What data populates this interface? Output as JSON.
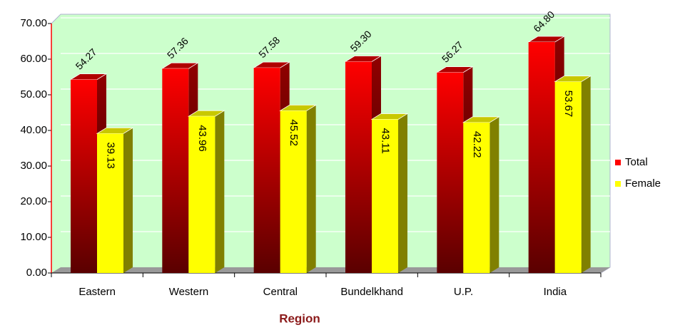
{
  "chart_data": {
    "type": "bar3d",
    "x_label": "Region",
    "categories": [
      "Eastern",
      "Western",
      "Central",
      "Bundelkhand",
      "U.P.",
      "India"
    ],
    "series": [
      {
        "name": "Total",
        "color": "#ff0000",
        "values": [
          54.27,
          57.36,
          57.58,
          59.3,
          56.27,
          64.8
        ],
        "value_labels": [
          "54.27",
          "57.36",
          "57.58",
          "59.30",
          "56.27",
          "64.80"
        ]
      },
      {
        "name": "Female",
        "color": "#ffff00",
        "values": [
          39.13,
          43.96,
          45.52,
          43.11,
          42.22,
          53.67
        ],
        "value_labels": [
          "39.13",
          "43.96",
          "45.52",
          "43.11",
          "42.22",
          "53.67"
        ]
      }
    ],
    "ylim": [
      0,
      70
    ],
    "yticks": [
      {
        "value": 0,
        "label": "0.00"
      },
      {
        "value": 10,
        "label": "10.00"
      },
      {
        "value": 20,
        "label": "20.00"
      },
      {
        "value": 30,
        "label": "30.00"
      },
      {
        "value": 40,
        "label": "40.00"
      },
      {
        "value": 50,
        "label": "50.00"
      },
      {
        "value": 60,
        "label": "60.00"
      },
      {
        "value": 70,
        "label": "70.00"
      }
    ],
    "grid": true,
    "legend": "right"
  }
}
